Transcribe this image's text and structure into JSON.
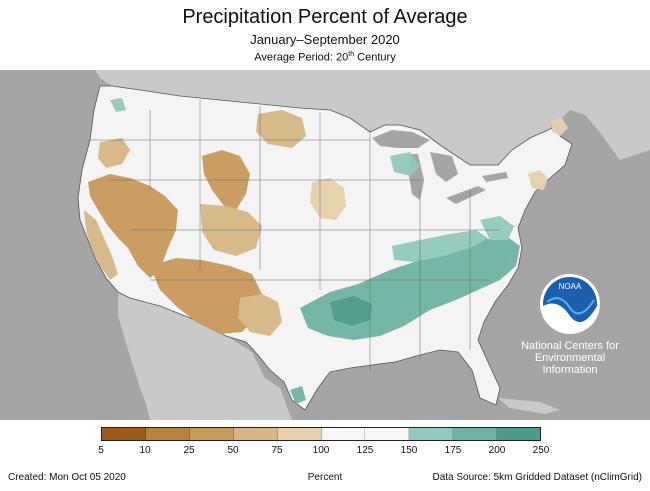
{
  "header": {
    "title": "Precipitation Percent of Average",
    "subtitle": "January–September 2020",
    "period_prefix": "Average Period: 20",
    "period_sup": "th",
    "period_suffix": " Century"
  },
  "logo": {
    "label": "NOAA",
    "org_line1": "National Centers for",
    "org_line2": "Environmental",
    "org_line3": "Information"
  },
  "legend": {
    "ticks": [
      "5",
      "10",
      "25",
      "50",
      "75",
      "100",
      "125",
      "150",
      "175",
      "200",
      "250"
    ],
    "colors": [
      "#9b5c1b",
      "#b7823e",
      "#c89a5c",
      "#d6b685",
      "#e6d1ac",
      "#f6f6f6",
      "#f6f6f6",
      "#92c9be",
      "#6fb3a5",
      "#4b9a8a",
      "#246f61"
    ],
    "label": "Percent"
  },
  "footer": {
    "created": "Created: Mon Oct 05 2020",
    "source": "Data Source: 5km Gridded Dataset (nClimGrid)"
  },
  "map_colors": {
    "background": "#a5a5a5",
    "land_neighbors": "#c9c9c9",
    "us_base": "#f4f4f4",
    "water": "#a5a5a5",
    "borders": "#555555"
  }
}
